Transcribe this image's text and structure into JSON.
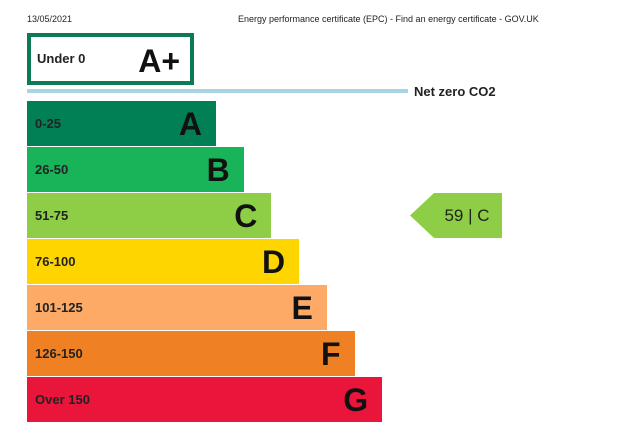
{
  "header": {
    "date": "13/05/2021",
    "title": "Energy performance certificate (EPC) - Find an energy certificate - GOV.UK"
  },
  "top_band": {
    "range": "Under 0",
    "letter": "A+"
  },
  "net_zero": "Net zero CO2",
  "bands": [
    {
      "range": "0-25",
      "letter": "A"
    },
    {
      "range": "26-50",
      "letter": "B"
    },
    {
      "range": "51-75",
      "letter": "C"
    },
    {
      "range": "76-100",
      "letter": "D"
    },
    {
      "range": "101-125",
      "letter": "E"
    },
    {
      "range": "126-150",
      "letter": "F"
    },
    {
      "range": "Over 150",
      "letter": "G"
    }
  ],
  "current_rating": "59 | C"
}
